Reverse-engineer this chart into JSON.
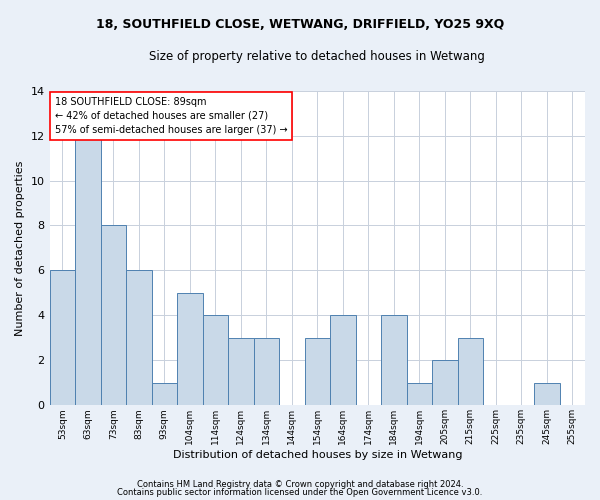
{
  "title": "18, SOUTHFIELD CLOSE, WETWANG, DRIFFIELD, YO25 9XQ",
  "subtitle": "Size of property relative to detached houses in Wetwang",
  "xlabel": "Distribution of detached houses by size in Wetwang",
  "ylabel": "Number of detached properties",
  "categories": [
    "53sqm",
    "63sqm",
    "73sqm",
    "83sqm",
    "93sqm",
    "104sqm",
    "114sqm",
    "124sqm",
    "134sqm",
    "144sqm",
    "154sqm",
    "164sqm",
    "174sqm",
    "184sqm",
    "194sqm",
    "205sqm",
    "215sqm",
    "225sqm",
    "235sqm",
    "245sqm",
    "255sqm"
  ],
  "values": [
    6,
    12,
    8,
    6,
    1,
    5,
    4,
    3,
    3,
    0,
    3,
    4,
    0,
    4,
    1,
    2,
    3,
    0,
    0,
    1,
    0
  ],
  "bar_color": "#c9d9e8",
  "bar_edge_color": "#4f81b0",
  "annotation_line1": "18 SOUTHFIELD CLOSE: 89sqm",
  "annotation_line2": "← 42% of detached houses are smaller (27)",
  "annotation_line3": "57% of semi-detached houses are larger (37) →",
  "annotation_box_color": "white",
  "annotation_box_edge_color": "red",
  "ylim": [
    0,
    14
  ],
  "yticks": [
    0,
    2,
    4,
    6,
    8,
    10,
    12,
    14
  ],
  "footer1": "Contains HM Land Registry data © Crown copyright and database right 2024.",
  "footer2": "Contains public sector information licensed under the Open Government Licence v3.0.",
  "bg_color": "#eaf0f8",
  "plot_bg_color": "white",
  "grid_color": "#c8d0dc"
}
